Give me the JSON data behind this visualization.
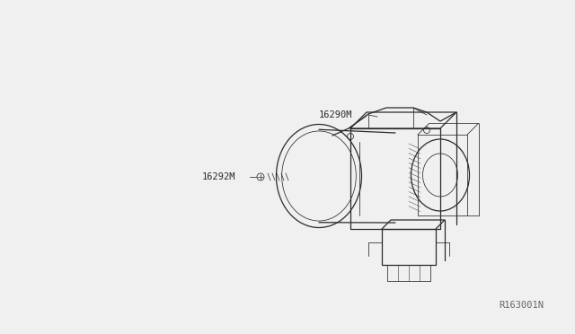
{
  "background_color": "#ffffff",
  "line_color": "#2a2a2a",
  "label_color": "#2a2a2a",
  "ref_color": "#555555",
  "watermark_color": "#666666",
  "part_label_1": "16290M",
  "part_label_2": "16292M",
  "diagram_ref": "R163001N",
  "figsize": [
    6.4,
    3.72
  ],
  "dpi": 100,
  "image_bgcolor": "#f0f0f0"
}
